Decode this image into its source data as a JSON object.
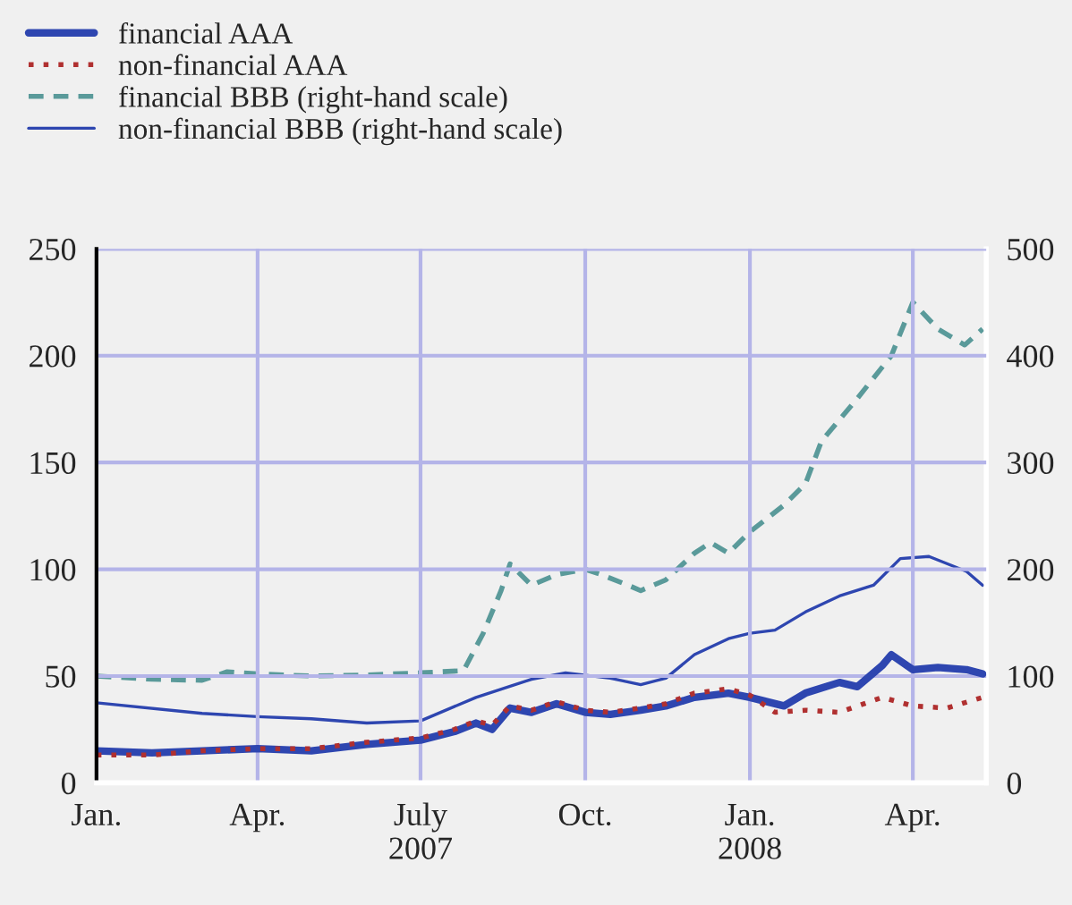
{
  "chart_data": {
    "type": "line",
    "legend": "top left",
    "grid": true,
    "xlim": [
      "2007-01-01",
      "2008-05-12"
    ],
    "xticks": [
      {
        "value": "2007-01-01",
        "label": "Jan."
      },
      {
        "value": "2007-04-01",
        "label": "Apr."
      },
      {
        "value": "2007-07-01",
        "label": "July\n2007"
      },
      {
        "value": "2007-10-01",
        "label": "Oct."
      },
      {
        "value": "2008-01-01",
        "label": "Jan.\n2008"
      },
      {
        "value": "2008-04-01",
        "label": "Apr."
      }
    ],
    "ylim": [
      0,
      250
    ],
    "yticks": [
      0,
      50,
      100,
      150,
      200,
      250
    ],
    "y2lim": [
      0,
      500
    ],
    "y2ticks": [
      0,
      100,
      200,
      300,
      400,
      500
    ],
    "series": [
      {
        "name": "financial AAA",
        "color": "#2e46b0",
        "line_style": "solid",
        "x": [
          "2007-01-01",
          "2007-02-01",
          "2007-03-01",
          "2007-04-01",
          "2007-05-01",
          "2007-06-01",
          "2007-07-01",
          "2007-07-20",
          "2007-08-01",
          "2007-08-10",
          "2007-08-20",
          "2007-09-01",
          "2007-09-15",
          "2007-10-01",
          "2007-10-15",
          "2007-11-01",
          "2007-11-15",
          "2007-12-01",
          "2007-12-20",
          "2008-01-01",
          "2008-01-20",
          "2008-02-01",
          "2008-02-20",
          "2008-03-01",
          "2008-03-15",
          "2008-03-20",
          "2008-04-01",
          "2008-04-15",
          "2008-05-01",
          "2008-05-10"
        ],
        "values": [
          15,
          14,
          15,
          16,
          15,
          18,
          20,
          24,
          28,
          25,
          35,
          33,
          37,
          33,
          32,
          34,
          36,
          40,
          42,
          40,
          36,
          42,
          47,
          45,
          55,
          60,
          53,
          54,
          53,
          51
        ]
      },
      {
        "name": "non-financial AAA",
        "color": "#b03030",
        "line_style": "dotted",
        "x": [
          "2007-01-01",
          "2007-02-01",
          "2007-03-01",
          "2007-04-01",
          "2007-05-01",
          "2007-06-01",
          "2007-07-01",
          "2007-07-20",
          "2007-08-01",
          "2007-08-10",
          "2007-08-20",
          "2007-09-01",
          "2007-09-15",
          "2007-10-01",
          "2007-10-15",
          "2007-11-01",
          "2007-11-15",
          "2007-12-01",
          "2007-12-20",
          "2008-01-01",
          "2008-01-15",
          "2008-02-01",
          "2008-02-20",
          "2008-03-15",
          "2008-04-01",
          "2008-04-20",
          "2008-05-10"
        ],
        "values": [
          13,
          13,
          15,
          16,
          16,
          19,
          21,
          25,
          29,
          27,
          36,
          34,
          38,
          34,
          33,
          35,
          37,
          42,
          44,
          41,
          33,
          34,
          33,
          40,
          36,
          35,
          40
        ]
      },
      {
        "name": "financial BBB (right-hand scale)",
        "color": "#5a9a9a",
        "line_style": "dashed",
        "axis": "y2",
        "x": [
          "2007-01-01",
          "2007-02-01",
          "2007-03-01",
          "2007-03-15",
          "2007-04-01",
          "2007-05-01",
          "2007-06-01",
          "2007-07-01",
          "2007-07-25",
          "2007-08-05",
          "2007-08-15",
          "2007-08-20",
          "2007-09-01",
          "2007-09-15",
          "2007-10-01",
          "2007-10-10",
          "2007-10-25",
          "2007-11-01",
          "2007-11-15",
          "2007-12-01",
          "2007-12-10",
          "2007-12-20",
          "2008-01-01",
          "2008-01-20",
          "2008-02-01",
          "2008-02-10",
          "2008-03-01",
          "2008-03-20",
          "2008-04-01",
          "2008-04-15",
          "2008-04-30",
          "2008-05-10"
        ],
        "values": [
          100,
          97,
          96,
          104,
          102,
          100,
          101,
          103,
          105,
          140,
          180,
          205,
          185,
          195,
          200,
          195,
          185,
          180,
          190,
          215,
          225,
          215,
          235,
          260,
          280,
          320,
          360,
          400,
          450,
          425,
          410,
          425
        ]
      },
      {
        "name": "non-financial BBB (right-hand scale)",
        "color": "#2e46b0",
        "line_style": "solid",
        "axis": "y2",
        "x": [
          "2007-01-01",
          "2007-03-01",
          "2007-04-01",
          "2007-05-01",
          "2007-06-01",
          "2007-07-01",
          "2007-08-01",
          "2007-09-01",
          "2007-09-20",
          "2007-10-15",
          "2007-11-01",
          "2007-11-15",
          "2007-12-01",
          "2007-12-20",
          "2008-01-01",
          "2008-01-15",
          "2008-02-01",
          "2008-02-20",
          "2008-03-10",
          "2008-03-25",
          "2008-04-10",
          "2008-05-01",
          "2008-05-10"
        ],
        "values": [
          75,
          65,
          62,
          60,
          56,
          58,
          80,
          97,
          103,
          98,
          92,
          98,
          120,
          135,
          140,
          143,
          160,
          175,
          185,
          210,
          212,
          198,
          185
        ]
      }
    ]
  }
}
